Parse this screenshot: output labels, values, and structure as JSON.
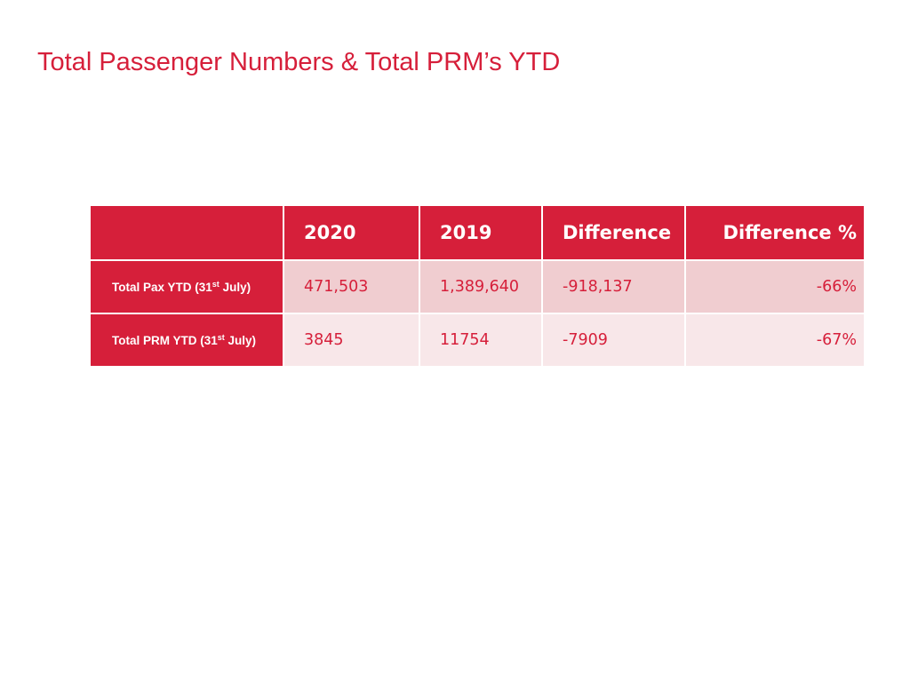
{
  "slide": {
    "title": "Total Passenger Numbers & Total PRM’s YTD"
  },
  "table": {
    "corner": "",
    "columns": [
      "2020",
      "2019",
      "Difference",
      "Difference %"
    ],
    "rows": [
      {
        "label_main": "Total Pax YTD (31",
        "label_sup": "st",
        "label_end": " July)",
        "cells": [
          "471,503",
          "1,389,640",
          "-918,137",
          "-66%"
        ]
      },
      {
        "label_main": "Total PRM YTD (31",
        "label_sup": "st",
        "label_end": " July)",
        "cells": [
          "3845",
          "11754",
          "-7909",
          "-67%"
        ]
      }
    ]
  },
  "colors": {
    "accent": "#d61f3a",
    "row_band_1": "#f0cdd0",
    "row_band_2": "#f8e7e9"
  }
}
